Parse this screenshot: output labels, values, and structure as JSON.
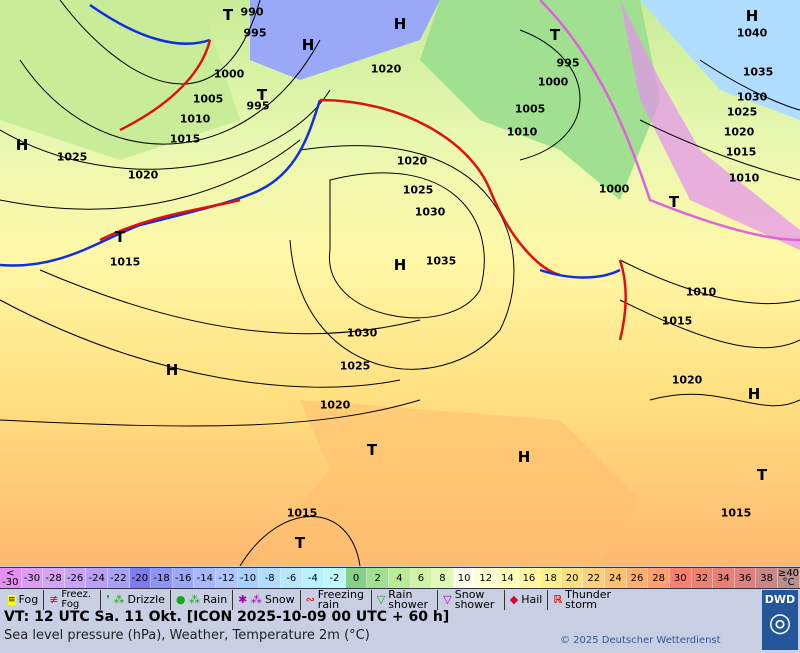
{
  "map": {
    "pressure_labels": [
      "990",
      "995",
      "1000",
      "1005",
      "995",
      "1010",
      "1015",
      "1025",
      "1020",
      "1015",
      "1020",
      "1025",
      "1030",
      "1035",
      "1030",
      "1025",
      "1020",
      "1015",
      "1020",
      "995",
      "1000",
      "1005",
      "1010",
      "1000",
      "1040",
      "1035",
      "1030",
      "1025",
      "1020",
      "1015",
      "1010",
      "1010",
      "1015",
      "1020",
      "1015"
    ],
    "high_label": "H",
    "low_label": "T"
  },
  "scale": {
    "values": [
      "<\n-30",
      "-30",
      "-28",
      "-26",
      "-24",
      "-22",
      "-20",
      "-18",
      "-16",
      "-14",
      "-12",
      "-10",
      "-8",
      "-6",
      "-4",
      "-2",
      "0",
      "2",
      "4",
      "6",
      "8",
      "10",
      "12",
      "14",
      "16",
      "18",
      "20",
      "22",
      "24",
      "26",
      "28",
      "30",
      "32",
      "34",
      "36",
      "38",
      "≥40\n°C"
    ],
    "colors": [
      "#e490f0",
      "#dc9cf4",
      "#d4a4f6",
      "#c8a4f6",
      "#b8a0f4",
      "#aaa0f4",
      "#7c7cf0",
      "#8c94f4",
      "#9aa8f8",
      "#a8b8fc",
      "#b0c4fe",
      "#a8d0ff",
      "#b0dcff",
      "#b8e8ff",
      "#b8f0ff",
      "#c0f8ff",
      "#88d088",
      "#a0e090",
      "#b8ec98",
      "#cff4a8",
      "#e0f8b8",
      "#fffff0",
      "#ffffd0",
      "#ffffb8",
      "#fff8a0",
      "#fff08c",
      "#ffe080",
      "#ffd078",
      "#ffc070",
      "#ffb070",
      "#ffa070",
      "#f88070",
      "#f08070",
      "#e88078",
      "#e08080",
      "#c88888",
      "#b89090"
    ]
  },
  "legend": [
    {
      "icon": "fog-icon",
      "label": "Fog"
    },
    {
      "icon": "freezing-fog-icon",
      "label": "Freez. Fog"
    },
    {
      "icon": "drizzle-icon",
      "label": "Drizzle"
    },
    {
      "icon": "rain-icon",
      "label": "Rain"
    },
    {
      "icon": "snow-icon",
      "label": "Snow"
    },
    {
      "icon": "freezing-rain-icon",
      "label": "Freezing rain"
    },
    {
      "icon": "rain-shower-icon",
      "label": "Rain shower"
    },
    {
      "icon": "snow-shower-icon",
      "label": "Snow shower"
    },
    {
      "icon": "hail-icon",
      "label": "Hail"
    },
    {
      "icon": "thunderstorm-icon",
      "label": "Thunder storm"
    }
  ],
  "footer": {
    "valid_time": "VT: 12 UTC Sa.  11 Okt. [ICON 2025-10-09  00 UTC + 60 h]",
    "subtitle": "Sea level pressure (hPa), Weather, Temperature 2m (°C)",
    "copyright": "© 2025 Deutscher Wetterdienst",
    "logo": "DWD"
  }
}
